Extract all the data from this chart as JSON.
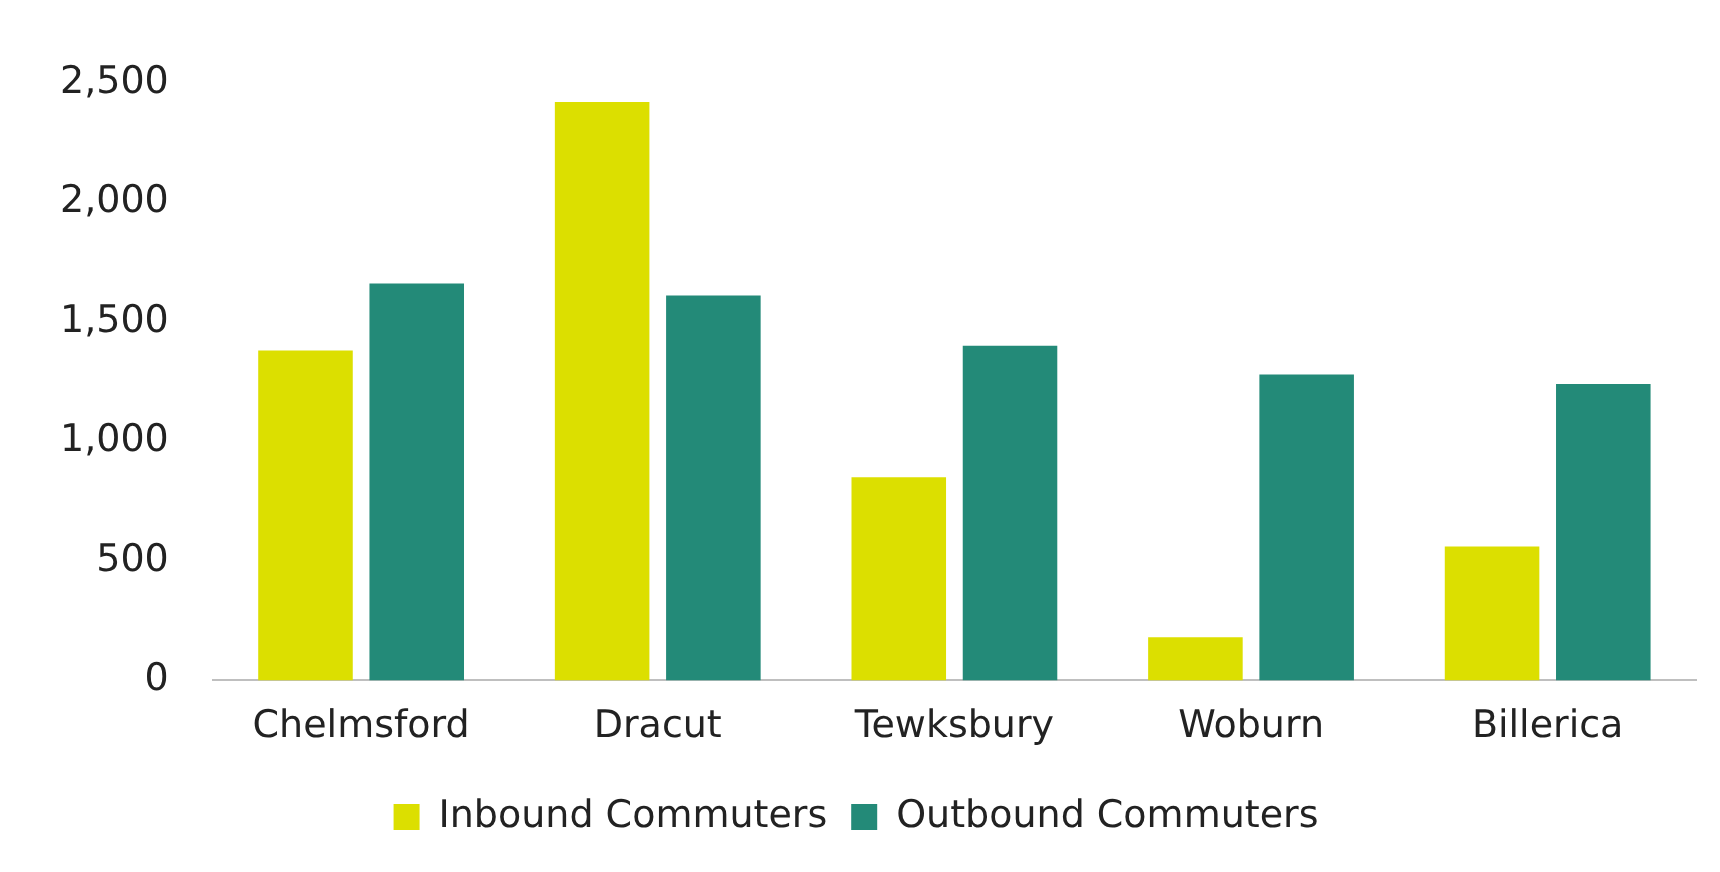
{
  "chart_data": {
    "type": "bar",
    "categories": [
      "Chelmsford",
      "Dracut",
      "Tewksbury",
      "Woburn",
      "Billerica"
    ],
    "series": [
      {
        "name": "Inbound Commuters",
        "color": "#dcdf00",
        "values": [
          1380,
          2420,
          850,
          180,
          560
        ]
      },
      {
        "name": "Outbound Commuters",
        "color": "#238a78",
        "values": [
          1660,
          1610,
          1400,
          1280,
          1240
        ]
      }
    ],
    "ylim": [
      0,
      2500
    ],
    "yticks": [
      0,
      500,
      {
        "value": 1000,
        "label": "1,000"
      },
      {
        "value": 1500,
        "label": "1,500"
      },
      {
        "value": 2000,
        "label": "2,000"
      },
      {
        "value": 2500,
        "label": "2,500"
      }
    ],
    "grid": false,
    "legend": "bottom"
  }
}
